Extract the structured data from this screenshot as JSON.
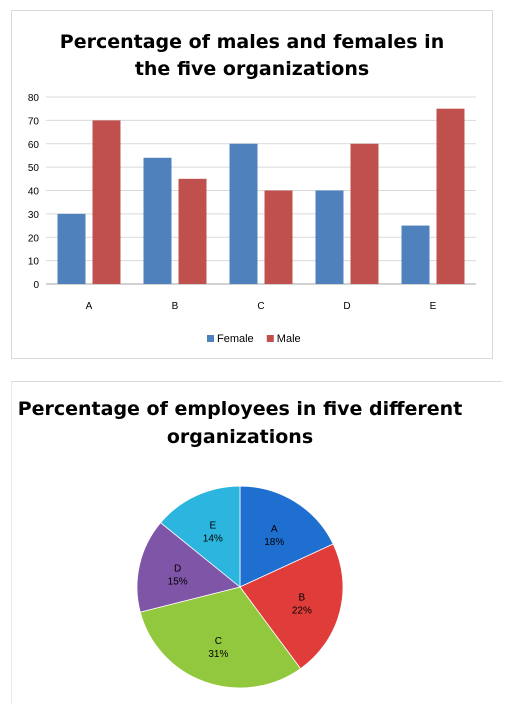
{
  "chart_data": [
    {
      "type": "bar",
      "title_lines": [
        "Percentage of males and females in",
        "the five organizations"
      ],
      "categories": [
        "A",
        "B",
        "C",
        "D",
        "E"
      ],
      "series": [
        {
          "name": "Female",
          "color": "#4f81bd",
          "values": [
            30,
            54,
            60,
            40,
            25
          ]
        },
        {
          "name": "Male",
          "color": "#c0504d",
          "values": [
            70,
            45,
            40,
            60,
            75
          ]
        }
      ],
      "ylim": [
        0,
        80
      ],
      "yticks": [
        "0",
        "10",
        "20",
        "30",
        "40",
        "50",
        "60",
        "70",
        "80"
      ],
      "grid": true,
      "legend_position": "bottom"
    },
    {
      "type": "pie",
      "title_lines": [
        "Percentage of employees in five different",
        "organizations"
      ],
      "slices": [
        {
          "label": "A",
          "value": 18,
          "value_label": "18%",
          "color": "#1f6fd1"
        },
        {
          "label": "B",
          "value": 22,
          "value_label": "22%",
          "color": "#e03c3a"
        },
        {
          "label": "C",
          "value": 31,
          "value_label": "31%",
          "color": "#92c83e"
        },
        {
          "label": "D",
          "value": 15,
          "value_label": "15%",
          "color": "#7f55a8"
        },
        {
          "label": "E",
          "value": 14,
          "value_label": "14%",
          "color": "#2cb6df"
        }
      ]
    }
  ]
}
